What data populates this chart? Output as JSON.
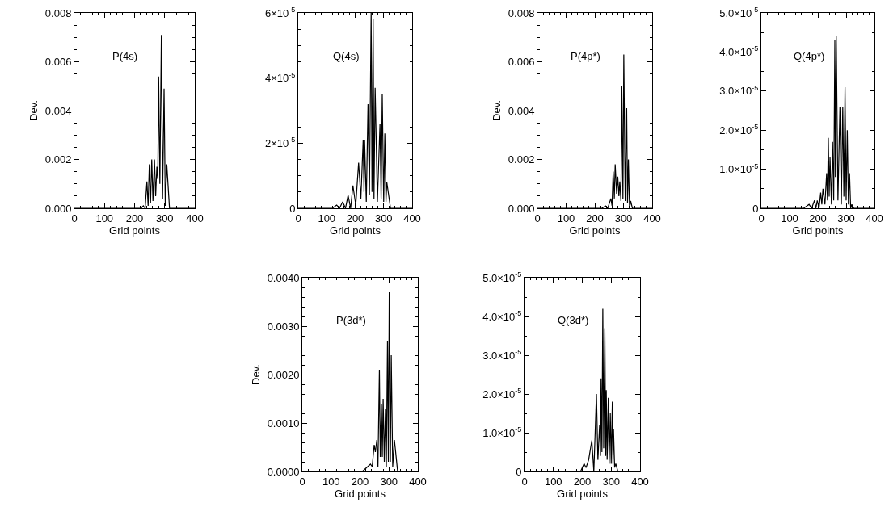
{
  "chart_data": [
    {
      "type": "line",
      "xlabel": "Grid points",
      "ylabel": "Dev.",
      "xlim": [
        0,
        400
      ],
      "xticks": [
        0,
        100,
        200,
        300,
        400
      ],
      "ylim": [
        0,
        0.008
      ],
      "yticks": [
        {
          "value": 0,
          "label": "0.000"
        },
        {
          "value": 0.002,
          "label": "0.002"
        },
        {
          "value": 0.004,
          "label": "0.004"
        },
        {
          "value": 0.006,
          "label": "0.006"
        },
        {
          "value": 0.008,
          "label": "0.008"
        }
      ],
      "series": [
        {
          "name": "P(4s)",
          "color": "#000000",
          "x": [
            0,
            200,
            215,
            222,
            229,
            235,
            241,
            245,
            249,
            253,
            257,
            261,
            266,
            270,
            274,
            277,
            280,
            284,
            289,
            293,
            298,
            302,
            307,
            316,
            400
          ],
          "values": [
            0,
            0,
            0,
            0,
            0.0001,
            0,
            0.0011,
            0.0001,
            0.0018,
            0.0002,
            0.002,
            0.0003,
            0.002,
            0.0005,
            0.0017,
            0.0012,
            0.0054,
            0.001,
            0.0071,
            0.0004,
            0.0049,
            0.0001,
            0.0018,
            0,
            0
          ]
        }
      ]
    },
    {
      "type": "line",
      "xlabel": "Grid points",
      "xlim": [
        0,
        400
      ],
      "xticks": [
        0,
        100,
        200,
        300,
        400
      ],
      "ylim": [
        0,
        6e-05
      ],
      "yticks": [
        {
          "value": 0,
          "label": "0"
        },
        {
          "value": 2e-05,
          "label": "2×10$^{-5}$"
        },
        {
          "value": 4e-05,
          "label": "4×10$^{-5}$"
        },
        {
          "value": 6e-05,
          "label": "6×10$^{-5}$"
        }
      ],
      "series": [
        {
          "name": "Q(4s)",
          "color": "#000000",
          "x": [
            0,
            120,
            135,
            145,
            156,
            166,
            175,
            184,
            192,
            202,
            212,
            220,
            228,
            231,
            233,
            239,
            245,
            250,
            256,
            259,
            263,
            266,
            270,
            278,
            287,
            291,
            295,
            300,
            304,
            308,
            311,
            324,
            400
          ],
          "values": [
            0,
            0,
            1e-06,
            0,
            2e-06,
            0,
            4e-06,
            0,
            7e-06,
            1e-06,
            1.4e-05,
            3e-06,
            2.1e-05,
            5e-06,
            2.1e-05,
            2e-06,
            3.2e-05,
            4e-06,
            6e-05,
            5e-06,
            5.8e-05,
            3e-06,
            3.7e-05,
            2e-06,
            2.6e-05,
            3e-06,
            3.5e-05,
            2e-06,
            2.3e-05,
            2e-06,
            8e-06,
            0,
            0
          ]
        }
      ]
    },
    {
      "type": "line",
      "xlabel": "Grid points",
      "ylabel": "Dev.",
      "xlim": [
        0,
        400
      ],
      "xticks": [
        0,
        100,
        200,
        300,
        400
      ],
      "ylim": [
        0,
        0.008
      ],
      "yticks": [
        {
          "value": 0,
          "label": "0.000"
        },
        {
          "value": 0.002,
          "label": "0.002"
        },
        {
          "value": 0.004,
          "label": "0.004"
        },
        {
          "value": 0.006,
          "label": "0.006"
        },
        {
          "value": 0.008,
          "label": "0.008"
        }
      ],
      "series": [
        {
          "name": "P(4p*)",
          "color": "#000000",
          "x": [
            0,
            225,
            237,
            245,
            256,
            260,
            264,
            268,
            271,
            276,
            280,
            284,
            287,
            291,
            294,
            298,
            301,
            306,
            311,
            314,
            317,
            321,
            325,
            331,
            400
          ],
          "values": [
            0,
            0,
            0.0001,
            0,
            0.0004,
            0.0001,
            0.0015,
            0.0004,
            0.0018,
            0.0006,
            0.0013,
            0.0005,
            0.0011,
            0.0003,
            0.005,
            0.0004,
            0.0063,
            0.0003,
            0.0041,
            0.0002,
            0.002,
            0,
            0.0003,
            0,
            0
          ]
        }
      ]
    },
    {
      "type": "line",
      "xlabel": "Grid points",
      "xlim": [
        0,
        400
      ],
      "xticks": [
        0,
        100,
        200,
        300,
        400
      ],
      "ylim": [
        0,
        5e-05
      ],
      "yticks": [
        {
          "value": 0,
          "label": "0"
        },
        {
          "value": 1e-05,
          "label": "1.0×10$^{-5}$"
        },
        {
          "value": 2e-05,
          "label": "2.0×10$^{-5}$"
        },
        {
          "value": 3e-05,
          "label": "3.0×10$^{-5}$"
        },
        {
          "value": 4e-05,
          "label": "4.0×10$^{-5}$"
        },
        {
          "value": 5e-05,
          "label": "5.0×10$^{-5}$"
        }
      ],
      "series": [
        {
          "name": "Q(4p*)",
          "color": "#000000",
          "x": [
            0,
            150,
            169,
            178,
            188,
            193,
            198,
            204,
            210,
            214,
            218,
            225,
            231,
            234,
            237,
            240,
            243,
            248,
            252,
            256,
            260,
            262,
            265,
            271,
            278,
            283,
            288,
            292,
            296,
            300,
            304,
            308,
            312,
            316,
            320,
            327,
            400
          ],
          "values": [
            0,
            0,
            1e-06,
            0,
            2e-06,
            0,
            2e-06,
            0,
            4e-06,
            1e-06,
            5e-06,
            1e-06,
            9e-06,
            2e-06,
            1.8e-05,
            3e-06,
            1.3e-05,
            1e-06,
            1.7e-05,
            2e-06,
            4.3e-05,
            8e-06,
            4.4e-05,
            2e-06,
            2.6e-05,
            1e-06,
            2.6e-05,
            3e-06,
            3.1e-05,
            2e-06,
            2e-05,
            1e-06,
            9e-06,
            0,
            1e-06,
            0,
            0
          ]
        }
      ]
    },
    {
      "type": "line",
      "xlabel": "Grid points",
      "ylabel": "Dev.",
      "xlim": [
        0,
        400
      ],
      "xticks": [
        0,
        100,
        200,
        300,
        400
      ],
      "ylim": [
        0,
        0.004
      ],
      "yticks": [
        {
          "value": 0,
          "label": "0.0000"
        },
        {
          "value": 0.001,
          "label": "0.0010"
        },
        {
          "value": 0.002,
          "label": "0.0020"
        },
        {
          "value": 0.003,
          "label": "0.0030"
        },
        {
          "value": 0.004,
          "label": "0.0040"
        }
      ],
      "series": [
        {
          "name": "P(3d*)",
          "color": "#000000",
          "x": [
            0,
            208,
            236,
            242,
            249,
            253,
            258,
            262,
            267,
            270,
            274,
            277,
            280,
            284,
            288,
            291,
            295,
            298,
            301,
            305,
            308,
            313,
            319,
            330,
            400
          ],
          "values": [
            0,
            0,
            0.00015,
            0.0001,
            0.00055,
            0.0004,
            0.00065,
            0.0001,
            0.0021,
            0.0003,
            0.0014,
            0.0003,
            0.0015,
            0.0002,
            0.0013,
            0.0001,
            0.0027,
            0.0002,
            0.0037,
            0.0002,
            0.0024,
            0.0001,
            0.00065,
            0,
            0
          ]
        }
      ]
    },
    {
      "type": "line",
      "xlabel": "Grid points",
      "xlim": [
        0,
        400
      ],
      "xticks": [
        0,
        100,
        200,
        300,
        400
      ],
      "ylim": [
        0,
        5e-05
      ],
      "yticks": [
        {
          "value": 0,
          "label": "0"
        },
        {
          "value": 1e-05,
          "label": "1.0×10$^{-5}$"
        },
        {
          "value": 2e-05,
          "label": "2.0×10$^{-5}$"
        },
        {
          "value": 3e-05,
          "label": "3.0×10$^{-5}$"
        },
        {
          "value": 4e-05,
          "label": "4.0×10$^{-5}$"
        },
        {
          "value": 5e-05,
          "label": "5.0×10$^{-5}$"
        }
      ],
      "series": [
        {
          "name": "Q(3d*)",
          "color": "#000000",
          "x": [
            0,
            194,
            206,
            213,
            222,
            233,
            240,
            249,
            254,
            260,
            263,
            265,
            268,
            271,
            274,
            278,
            281,
            283,
            286,
            290,
            293,
            297,
            300,
            304,
            306,
            308,
            312,
            316,
            323,
            400
          ],
          "values": [
            0,
            0,
            2e-06,
            1e-06,
            3e-06,
            8e-06,
            0,
            2e-05,
            3e-06,
            1.2e-05,
            4e-06,
            2.4e-05,
            5e-06,
            4.2e-05,
            6e-06,
            3.7e-05,
            4e-06,
            2.1e-05,
            3e-06,
            1.9e-05,
            2e-06,
            1.5e-05,
            2e-06,
            1.8e-05,
            2e-06,
            1.1e-05,
            1e-06,
            2e-06,
            0,
            0
          ]
        }
      ]
    }
  ]
}
